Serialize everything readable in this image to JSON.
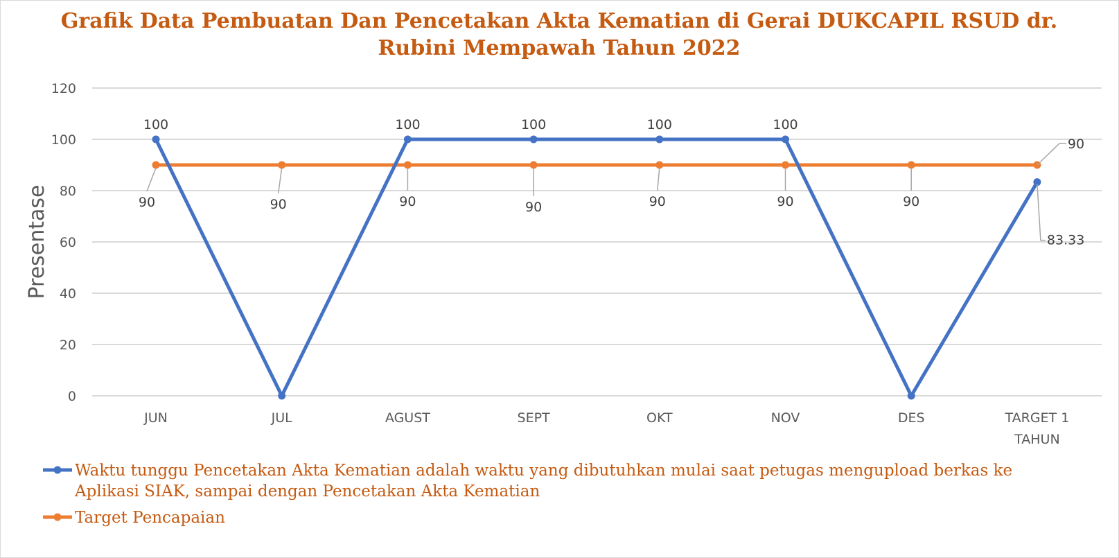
{
  "chart_data": {
    "type": "line",
    "title_lines": [
      "Grafik Data Pembuatan Dan Pencetakan Akta Kematian di Gerai DUKCAPIL RSUD dr.",
      "Rubini Mempawah Tahun 2022"
    ],
    "ylabel": "Presentase",
    "xlabel": "",
    "ylim": [
      0,
      120
    ],
    "y_ticks": [
      "0",
      "20",
      "40",
      "60",
      "80",
      "100",
      "120"
    ],
    "categories": [
      "JUN",
      "JUL",
      "AGUST",
      "SEPT",
      "OKT",
      "NOV",
      "DES",
      "TARGET 1 TAHUN"
    ],
    "category_label_lines": [
      [
        "JUN"
      ],
      [
        "JUL"
      ],
      [
        "AGUST"
      ],
      [
        "SEPT"
      ],
      [
        "OKT"
      ],
      [
        "NOV"
      ],
      [
        "DES"
      ],
      [
        "TARGET 1",
        "TAHUN"
      ]
    ],
    "grid": true,
    "legend_position": "bottom",
    "series": [
      {
        "name": "Waktu tunggu Pencetakan Akta Kematian adalah waktu yang dibutuhkan mulai saat petugas mengupload berkas ke Aplikasi SIAK, sampai dengan Pencetakan Akta Kematian",
        "legend_lines": [
          "Waktu tunggu Pencetakan Akta Kematian adalah waktu yang dibutuhkan mulai saat petugas mengupload berkas ke",
          "Aplikasi SIAK, sampai dengan Pencetakan Akta Kematian"
        ],
        "values": [
          100,
          0,
          100,
          100,
          100,
          100,
          0,
          83.33
        ],
        "data_labels": [
          "100",
          "",
          "100",
          "100",
          "100",
          "100",
          "",
          "83.33"
        ],
        "color": "#4472c4"
      },
      {
        "name": "Target Pencapaian",
        "legend_lines": [
          "Target Pencapaian"
        ],
        "values": [
          90,
          90,
          90,
          90,
          90,
          90,
          90,
          90
        ],
        "data_labels": [
          "90",
          "90",
          "90",
          "90",
          "90",
          "90",
          "90",
          "90"
        ],
        "color": "#ed7d31"
      }
    ]
  }
}
